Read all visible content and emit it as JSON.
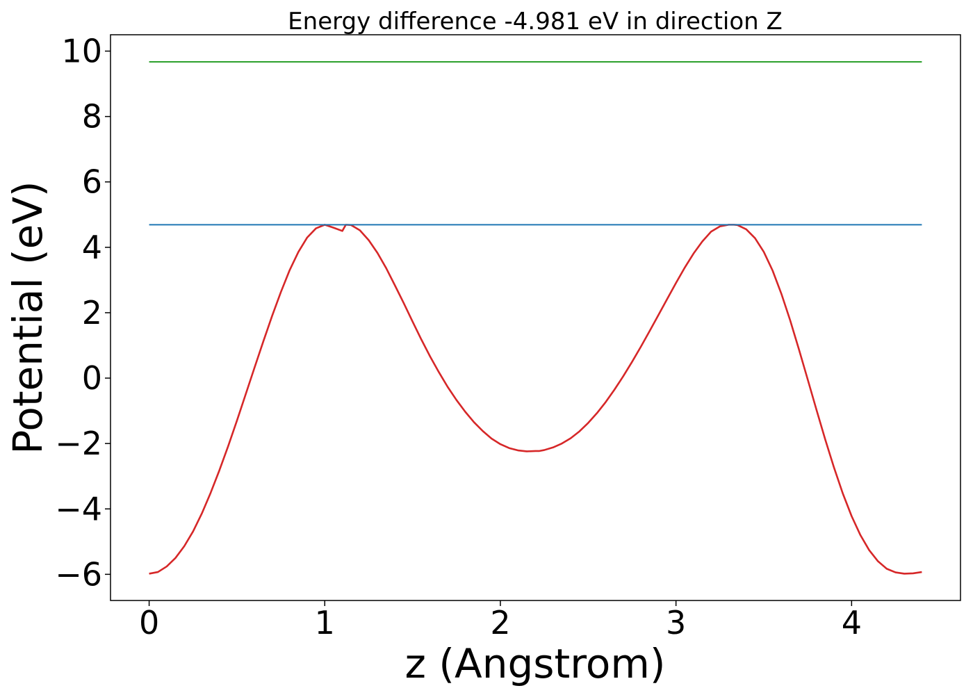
{
  "chart_data": {
    "type": "line",
    "title": "Energy difference -4.981 eV in direction Z",
    "xlabel": "z (Angstrom)",
    "ylabel": "Potential (eV)",
    "xlim": [
      -0.22,
      4.62
    ],
    "ylim": [
      -6.8,
      10.5
    ],
    "xticks": [
      0,
      1,
      2,
      3,
      4
    ],
    "yticks": [
      -6,
      -4,
      -2,
      0,
      2,
      4,
      6,
      8,
      10
    ],
    "xtick_labels": [
      "0",
      "1",
      "2",
      "3",
      "4"
    ],
    "ytick_labels": [
      "−6",
      "−4",
      "−2",
      "0",
      "2",
      "4",
      "6",
      "8",
      "10"
    ],
    "grid": false,
    "legend": "none",
    "series": [
      {
        "color": "#d62728",
        "x": [
          0.0,
          0.05,
          0.1,
          0.15,
          0.2,
          0.25,
          0.3,
          0.35,
          0.4,
          0.45,
          0.5,
          0.55,
          0.6,
          0.65,
          0.7,
          0.75,
          0.8,
          0.85,
          0.9,
          0.95,
          1.0,
          1.05,
          1.1,
          1.12,
          1.15,
          1.2,
          1.25,
          1.3,
          1.35,
          1.4,
          1.45,
          1.5,
          1.55,
          1.6,
          1.65,
          1.7,
          1.75,
          1.8,
          1.85,
          1.9,
          1.95,
          2.0,
          2.05,
          2.1,
          2.15,
          2.2,
          2.22,
          2.25,
          2.3,
          2.35,
          2.4,
          2.45,
          2.5,
          2.55,
          2.6,
          2.65,
          2.7,
          2.75,
          2.8,
          2.85,
          2.9,
          2.95,
          3.0,
          3.05,
          3.1,
          3.15,
          3.2,
          3.25,
          3.3,
          3.33,
          3.35,
          3.4,
          3.45,
          3.5,
          3.55,
          3.6,
          3.65,
          3.7,
          3.75,
          3.8,
          3.85,
          3.9,
          3.95,
          4.0,
          4.05,
          4.1,
          4.15,
          4.2,
          4.25,
          4.3,
          4.35,
          4.4
        ],
        "y": [
          -5.98,
          -5.93,
          -5.76,
          -5.5,
          -5.14,
          -4.69,
          -4.14,
          -3.51,
          -2.82,
          -2.08,
          -1.3,
          -0.49,
          0.32,
          1.12,
          1.9,
          2.63,
          3.3,
          3.86,
          4.3,
          4.58,
          4.69,
          4.6,
          4.5,
          4.69,
          4.68,
          4.52,
          4.22,
          3.83,
          3.36,
          2.83,
          2.29,
          1.73,
          1.18,
          0.66,
          0.18,
          -0.27,
          -0.67,
          -1.03,
          -1.35,
          -1.62,
          -1.85,
          -2.02,
          -2.14,
          -2.21,
          -2.24,
          -2.23,
          -2.23,
          -2.2,
          -2.12,
          -2.0,
          -1.84,
          -1.63,
          -1.37,
          -1.07,
          -0.73,
          -0.35,
          0.06,
          0.5,
          0.96,
          1.44,
          1.93,
          2.42,
          2.91,
          3.38,
          3.81,
          4.18,
          4.48,
          4.64,
          4.69,
          4.69,
          4.68,
          4.55,
          4.28,
          3.86,
          3.29,
          2.58,
          1.77,
          0.88,
          -0.04,
          -0.97,
          -1.88,
          -2.74,
          -3.53,
          -4.22,
          -4.8,
          -5.26,
          -5.6,
          -5.83,
          -5.94,
          -5.98,
          -5.97,
          -5.93
        ]
      },
      {
        "color": "#1f77b4",
        "x": [
          0.0,
          4.4
        ],
        "y": [
          4.69,
          4.69
        ]
      },
      {
        "color": "#2ca02c",
        "x": [
          0.0,
          4.4
        ],
        "y": [
          9.67,
          9.67
        ]
      }
    ]
  }
}
